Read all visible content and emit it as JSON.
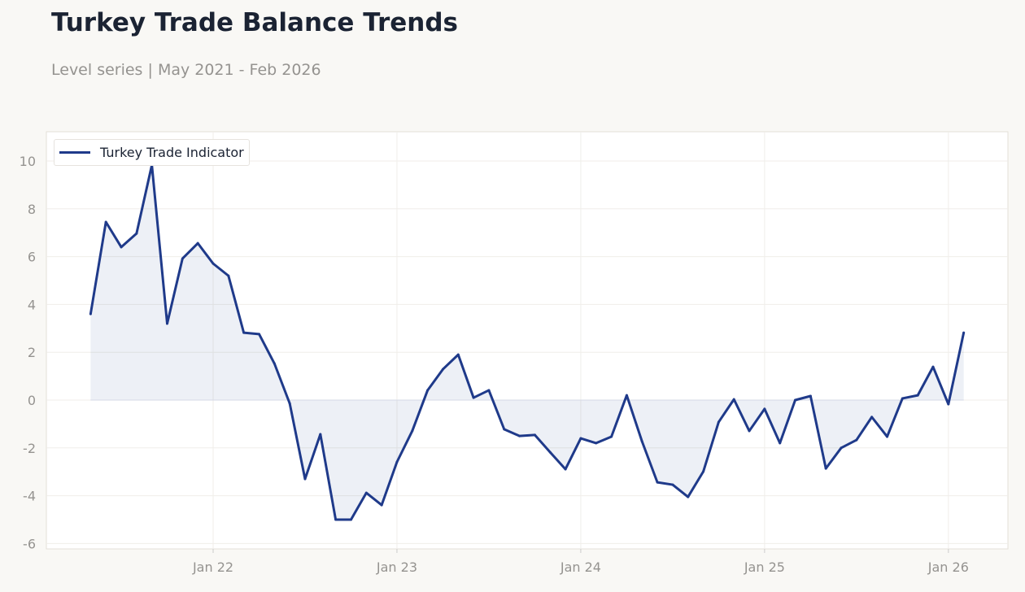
{
  "title": "Turkey Trade Balance Trends",
  "subtitle": "Level series | May 2021 - Feb 2026",
  "chart_data": {
    "type": "area",
    "title": "Turkey Trade Balance Trends",
    "subtitle": "Level series | May 2021 - Feb 2026",
    "xlabel": "",
    "ylabel": "",
    "ylim": [
      -6.2,
      11.2
    ],
    "xlim": [
      "2021-02",
      "2026-04"
    ],
    "yticks": [
      -6,
      -4,
      -2,
      0,
      2,
      4,
      6,
      8,
      10
    ],
    "xticks": [
      {
        "date": "2022-01",
        "label": "Jan 22"
      },
      {
        "date": "2023-01",
        "label": "Jan 23"
      },
      {
        "date": "2024-01",
        "label": "Jan 24"
      },
      {
        "date": "2025-01",
        "label": "Jan 25"
      },
      {
        "date": "2026-01",
        "label": "Jan 26"
      }
    ],
    "grid": true,
    "legend_position": "top-left",
    "colors": {
      "line": "#1f3a8a",
      "fill": "#1f3a8a"
    },
    "series": [
      {
        "name": "Turkey Trade Indicator",
        "x": [
          "2021-05",
          "2021-06",
          "2021-07",
          "2021-08",
          "2021-09",
          "2021-10",
          "2021-11",
          "2021-12",
          "2022-01",
          "2022-02",
          "2022-03",
          "2022-04",
          "2022-05",
          "2022-06",
          "2022-07",
          "2022-08",
          "2022-09",
          "2022-10",
          "2022-11",
          "2022-12",
          "2023-01",
          "2023-02",
          "2023-03",
          "2023-04",
          "2023-05",
          "2023-06",
          "2023-07",
          "2023-08",
          "2023-09",
          "2023-10",
          "2023-11",
          "2023-12",
          "2024-01",
          "2024-02",
          "2024-03",
          "2024-04",
          "2024-05",
          "2024-06",
          "2024-07",
          "2024-08",
          "2024-09",
          "2024-10",
          "2024-11",
          "2024-12",
          "2025-01",
          "2025-02",
          "2025-03",
          "2025-04",
          "2025-05",
          "2025-06",
          "2025-07",
          "2025-08",
          "2025-09",
          "2025-10",
          "2025-11",
          "2025-12",
          "2026-01",
          "2026-02"
        ],
        "values": [
          3.6,
          7.45,
          6.4,
          6.97,
          9.83,
          3.2,
          5.92,
          6.56,
          5.71,
          5.2,
          2.82,
          2.76,
          1.53,
          -0.14,
          -3.3,
          -1.43,
          -5.0,
          -5.0,
          -3.88,
          -4.39,
          -2.59,
          -1.29,
          0.41,
          1.29,
          1.9,
          0.1,
          0.41,
          -1.22,
          -1.5,
          -1.46,
          -2.18,
          -2.89,
          -1.6,
          -1.8,
          -1.53,
          0.2,
          -1.73,
          -3.44,
          -3.54,
          -4.05,
          -2.99,
          -0.92,
          0.03,
          -1.29,
          -0.37,
          -1.8,
          0.0,
          0.17,
          -2.86,
          -2.0,
          -1.67,
          -0.71,
          -1.53,
          0.07,
          0.2,
          1.39,
          -0.17,
          2.82
        ]
      }
    ]
  }
}
